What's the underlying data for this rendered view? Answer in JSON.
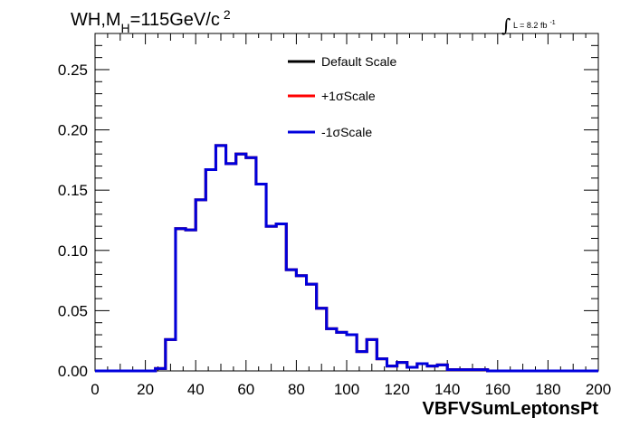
{
  "chart_data": {
    "type": "line",
    "title": {
      "main": "WH,M",
      "subscript": "H",
      "rest": "=115GeV/c",
      "superscript": "2"
    },
    "lumi": {
      "integral": "∫",
      "text": "L = 8.2 fb",
      "superscript": "-1"
    },
    "xlabel": "VBFVSumLeptonsPt",
    "ylabel": "",
    "xlim": [
      0,
      200
    ],
    "ylim": [
      0,
      0.28
    ],
    "x_ticks": [
      "0",
      "20",
      "40",
      "60",
      "80",
      "100",
      "120",
      "140",
      "160",
      "180",
      "200"
    ],
    "y_ticks": [
      "0.00",
      "0.05",
      "0.10",
      "0.15",
      "0.20",
      "0.25"
    ],
    "bin_edges": [
      0,
      4,
      8,
      12,
      16,
      20,
      24,
      28,
      32,
      36,
      40,
      44,
      48,
      52,
      56,
      60,
      64,
      68,
      72,
      76,
      80,
      84,
      88,
      92,
      96,
      100,
      104,
      108,
      112,
      116,
      120,
      124,
      128,
      132,
      136,
      140,
      144,
      148,
      152,
      156,
      160,
      164,
      168,
      172,
      176,
      180,
      184,
      188,
      192,
      196,
      200
    ],
    "series": [
      {
        "name": "Default Scale",
        "color": "#000000",
        "values": [
          0,
          0,
          0,
          0,
          0,
          0,
          0.002,
          0.026,
          0.118,
          0.117,
          0.142,
          0.167,
          0.187,
          0.172,
          0.18,
          0.177,
          0.155,
          0.12,
          0.122,
          0.084,
          0.079,
          0.072,
          0.052,
          0.035,
          0.032,
          0.03,
          0.016,
          0.026,
          0.01,
          0.004,
          0.007,
          0.003,
          0.006,
          0.004,
          0.005,
          0.001,
          0.001,
          0.001,
          0.001,
          0,
          0,
          0,
          0,
          0,
          0,
          0,
          0,
          0,
          0,
          0
        ]
      },
      {
        "name": "+1σScale",
        "color": "#ff0000",
        "values": [
          0,
          0,
          0,
          0,
          0,
          0,
          0.002,
          0.026,
          0.118,
          0.117,
          0.142,
          0.167,
          0.187,
          0.172,
          0.18,
          0.177,
          0.155,
          0.12,
          0.122,
          0.084,
          0.079,
          0.072,
          0.052,
          0.035,
          0.032,
          0.03,
          0.016,
          0.026,
          0.01,
          0.004,
          0.007,
          0.003,
          0.006,
          0.004,
          0.005,
          0.001,
          0.001,
          0.001,
          0.001,
          0,
          0,
          0,
          0,
          0,
          0,
          0,
          0,
          0,
          0,
          0
        ]
      },
      {
        "name": "-1σScale",
        "color": "#0000dd",
        "values": [
          0,
          0,
          0,
          0,
          0,
          0,
          0.002,
          0.026,
          0.118,
          0.117,
          0.142,
          0.167,
          0.187,
          0.172,
          0.18,
          0.177,
          0.155,
          0.12,
          0.122,
          0.084,
          0.079,
          0.072,
          0.052,
          0.035,
          0.032,
          0.03,
          0.016,
          0.026,
          0.01,
          0.004,
          0.007,
          0.003,
          0.006,
          0.004,
          0.005,
          0.001,
          0.001,
          0.001,
          0.001,
          0,
          0,
          0,
          0,
          0,
          0,
          0,
          0,
          0,
          0,
          0
        ]
      }
    ],
    "legend": "top-center",
    "grid": false
  }
}
